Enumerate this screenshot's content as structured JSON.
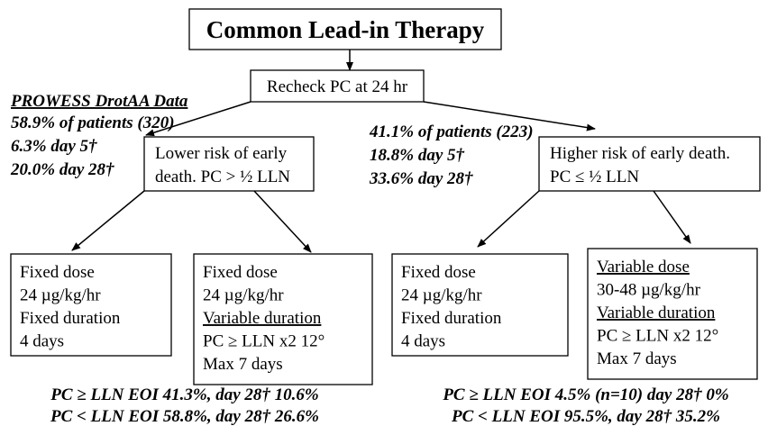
{
  "title": "Common Lead-in Therapy",
  "recheck": "Recheck PC at 24 hr",
  "left_data": {
    "heading": "PROWESS DrotAA Data",
    "lines": [
      "58.9% of patients (320)",
      "6.3% day 5†",
      "20.0% day 28†"
    ]
  },
  "right_data": {
    "lines": [
      "41.1% of patients (223)",
      "18.8% day 5†",
      "33.6% day 28†"
    ]
  },
  "lower_risk": {
    "lines": [
      "Lower risk of early",
      "death. PC > ½ LLN"
    ]
  },
  "higher_risk": {
    "lines": [
      "Higher risk of early death.",
      "PC ≤ ½ LLN"
    ]
  },
  "boxes": [
    {
      "lines": [
        "Fixed dose",
        "24 µg/kg/hr",
        "Fixed duration",
        "4 days"
      ]
    },
    {
      "lines": [
        "Fixed dose",
        "24 µg/kg/hr",
        "Variable duration",
        "PC ≥ LLN x2 12°",
        "Max 7 days"
      ]
    },
    {
      "lines": [
        "Fixed dose",
        "24 µg/kg/hr",
        "Fixed duration",
        "4 days"
      ]
    },
    {
      "lines": [
        "Variable dose",
        "30-48 µg/kg/hr",
        "Variable duration",
        "PC ≥ LLN x2 12°",
        "Max 7 days"
      ]
    }
  ],
  "outcomes_left": [
    "PC ≥ LLN EOI 41.3%, day 28† 10.6%",
    "PC < LLN EOI 58.8%, day 28† 26.6%"
  ],
  "outcomes_right": [
    "PC ≥ LLN EOI 4.5% (n=10) day 28† 0%",
    "PC < LLN EOI 95.5%, day 28† 35.2%"
  ]
}
